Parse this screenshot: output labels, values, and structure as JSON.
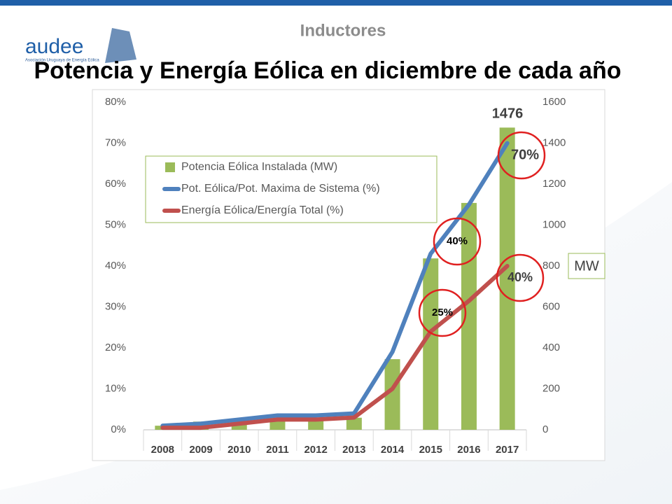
{
  "header": "Inductores",
  "logo": {
    "text": "audee",
    "subtitle": "Asociación Uruguaya de Energía Eólica"
  },
  "chart_data": {
    "type": "bar-line",
    "title": "Potencia y Energía Eólica en diciembre de cada año",
    "categories": [
      "2008",
      "2009",
      "2010",
      "2011",
      "2012",
      "2013",
      "2014",
      "2015",
      "2016",
      "2017"
    ],
    "series": [
      {
        "name": "Potencia Eólica Instalada (MW)",
        "color": "#9bbb59",
        "type": "bar",
        "axis": "y2",
        "values": [
          20,
          40,
          43,
          43,
          52,
          59,
          345,
          837,
          1108,
          1476
        ]
      },
      {
        "name": "Pot. Eólica/Pot. Maxima de Sistema (%)",
        "color": "#4f81bd",
        "type": "line",
        "values": [
          1,
          1.5,
          2.5,
          3.5,
          3.5,
          4,
          19,
          43,
          55,
          70
        ]
      },
      {
        "name": "Energía Eólica/Energía Total (%)",
        "color": "#c0504d",
        "type": "line",
        "values": [
          0.5,
          0.5,
          1.5,
          2.5,
          2.5,
          3,
          10,
          24,
          31.5,
          40
        ]
      }
    ],
    "ylim": [
      0,
      80
    ],
    "yticks": [
      {
        "value": 0,
        "label": "0%"
      },
      {
        "value": 10,
        "label": "10%"
      },
      {
        "value": 20,
        "label": "20%"
      },
      {
        "value": 30,
        "label": "30%"
      },
      {
        "value": 40,
        "label": "40%"
      },
      {
        "value": 50,
        "label": "50%"
      },
      {
        "value": 60,
        "label": "60%"
      },
      {
        "value": 70,
        "label": "70%"
      },
      {
        "value": 80,
        "label": "80%"
      }
    ],
    "y2lim": [
      0,
      1600
    ],
    "y2ticks": [
      0,
      200,
      400,
      600,
      800,
      1000,
      1200,
      1400,
      1600
    ],
    "y2label": "MW",
    "annotations": [
      "1476",
      "70%",
      "40%",
      "40%",
      "25%"
    ],
    "legend": "upper left"
  }
}
